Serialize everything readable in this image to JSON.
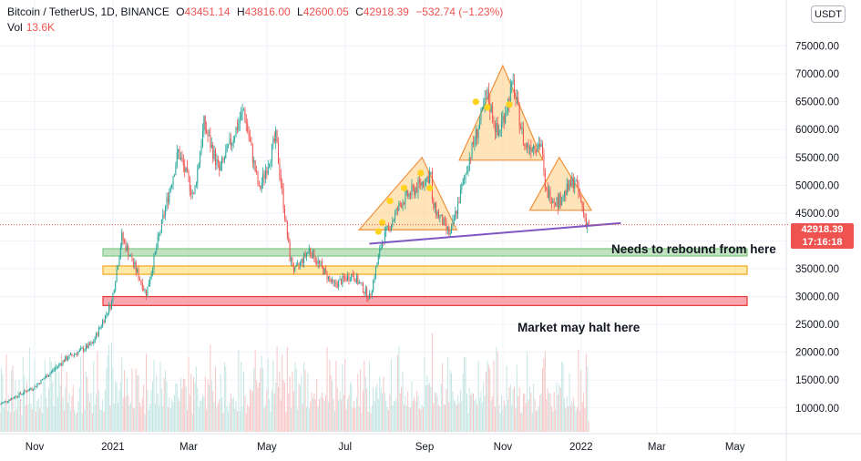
{
  "header": {
    "symbol": "Bitcoin / TetherUS, 1D, BINANCE",
    "o_label": "O",
    "o_value": "43451.14",
    "h_label": "H",
    "h_value": "43816.00",
    "l_label": "L",
    "l_value": "42600.05",
    "c_label": "C",
    "c_value": "42918.39",
    "change": "−532.74 (−1.23%)",
    "vol_label": "Vol",
    "vol_value": "13.6K"
  },
  "currency_button": "USDT",
  "price_tag": {
    "price": "42918.39",
    "countdown": "17:16:18"
  },
  "annotations": {
    "rebound": "Needs to rebound from here",
    "halt": "Market may halt here"
  },
  "colors": {
    "up": "#26a69a",
    "down": "#ef5350",
    "vol_up": "#c4e6e3",
    "vol_down": "#f6c6c6",
    "trendline": "#7e57c2"
  },
  "chart_data": {
    "type": "candlestick",
    "ylim": [
      8000,
      80000
    ],
    "y_ticks": [
      "75000.00",
      "70000.00",
      "65000.00",
      "60000.00",
      "55000.00",
      "50000.00",
      "45000.00",
      "40000.00",
      "35000.00",
      "30000.00",
      "25000.00",
      "20000.00",
      "15000.00",
      "10000.00"
    ],
    "y_tick_values": [
      75000,
      70000,
      65000,
      60000,
      55000,
      50000,
      45000,
      40000,
      35000,
      30000,
      25000,
      20000,
      15000,
      10000
    ],
    "x_ticks": [
      "Nov",
      "2021",
      "Mar",
      "May",
      "Jul",
      "Sep",
      "Nov",
      "2022",
      "Mar",
      "May"
    ],
    "x_tick_dates": [
      "2020-11-01",
      "2021-01-01",
      "2021-03-01",
      "2021-05-01",
      "2021-07-01",
      "2021-09-01",
      "2021-11-01",
      "2022-01-01",
      "2022-03-01",
      "2022-05-01"
    ],
    "x_range": [
      "2020-10-05",
      "2022-06-10"
    ],
    "price_anchors": [
      [
        "2020-10-05",
        10700
      ],
      [
        "2020-11-01",
        13800
      ],
      [
        "2020-11-25",
        18800
      ],
      [
        "2020-12-16",
        21500
      ],
      [
        "2020-12-31",
        29000
      ],
      [
        "2021-01-08",
        40700
      ],
      [
        "2021-01-27",
        30500
      ],
      [
        "2021-02-10",
        45000
      ],
      [
        "2021-02-21",
        56000
      ],
      [
        "2021-03-05",
        48000
      ],
      [
        "2021-03-13",
        61000
      ],
      [
        "2021-03-25",
        52500
      ],
      [
        "2021-04-13",
        63500
      ],
      [
        "2021-04-25",
        49000
      ],
      [
        "2021-05-08",
        58500
      ],
      [
        "2021-05-19",
        37000
      ],
      [
        "2021-05-23",
        34500
      ],
      [
        "2021-06-03",
        38500
      ],
      [
        "2021-06-22",
        32000
      ],
      [
        "2021-07-07",
        34000
      ],
      [
        "2021-07-20",
        29800
      ],
      [
        "2021-07-30",
        40000
      ],
      [
        "2021-08-14",
        47000
      ],
      [
        "2021-09-06",
        52000
      ],
      [
        "2021-09-07",
        46500
      ],
      [
        "2021-09-21",
        41000
      ],
      [
        "2021-10-06",
        55000
      ],
      [
        "2021-10-20",
        66000
      ],
      [
        "2021-10-28",
        59000
      ],
      [
        "2021-11-09",
        68000
      ],
      [
        "2021-11-18",
        57000
      ],
      [
        "2021-12-01",
        57500
      ],
      [
        "2021-12-04",
        49000
      ],
      [
        "2021-12-14",
        47000
      ],
      [
        "2021-12-27",
        51000
      ],
      [
        "2022-01-05",
        43400
      ],
      [
        "2022-01-07",
        42918
      ]
    ],
    "last_close": 42918.39,
    "overlays": {
      "zones": [
        {
          "name": "green-zone",
          "from": 37400,
          "to": 38600,
          "color": "#a5d6a7"
        },
        {
          "name": "orange-zone",
          "from": 34000,
          "to": 35500,
          "color": "#ffe082"
        },
        {
          "name": "red-zone",
          "from": 28400,
          "to": 30000,
          "color": "#f7828f"
        }
      ],
      "triangles": [
        {
          "apex": [
            "2021-08-30",
            55000
          ],
          "left": [
            "2021-07-12",
            42000
          ],
          "right": [
            "2021-09-26",
            42000
          ]
        },
        {
          "apex": [
            "2021-11-01",
            71500
          ],
          "left": [
            "2021-09-28",
            54500
          ],
          "right": [
            "2021-12-02",
            54500
          ]
        },
        {
          "apex": [
            "2021-12-15",
            55000
          ],
          "left": [
            "2021-11-22",
            45500
          ],
          "right": [
            "2022-01-09",
            45500
          ]
        }
      ],
      "dots": [
        [
          "2021-07-27",
          41700
        ],
        [
          "2021-07-30",
          43300
        ],
        [
          "2021-08-05",
          47200
        ],
        [
          "2021-08-16",
          49500
        ],
        [
          "2021-08-29",
          52200
        ],
        [
          "2021-09-05",
          49500
        ],
        [
          "2021-10-11",
          65000
        ],
        [
          "2021-10-20",
          64000
        ],
        [
          "2021-11-06",
          64500
        ]
      ],
      "trendline": [
        [
          "2021-07-20",
          39500
        ],
        [
          "2022-02-01",
          43200
        ]
      ]
    }
  }
}
